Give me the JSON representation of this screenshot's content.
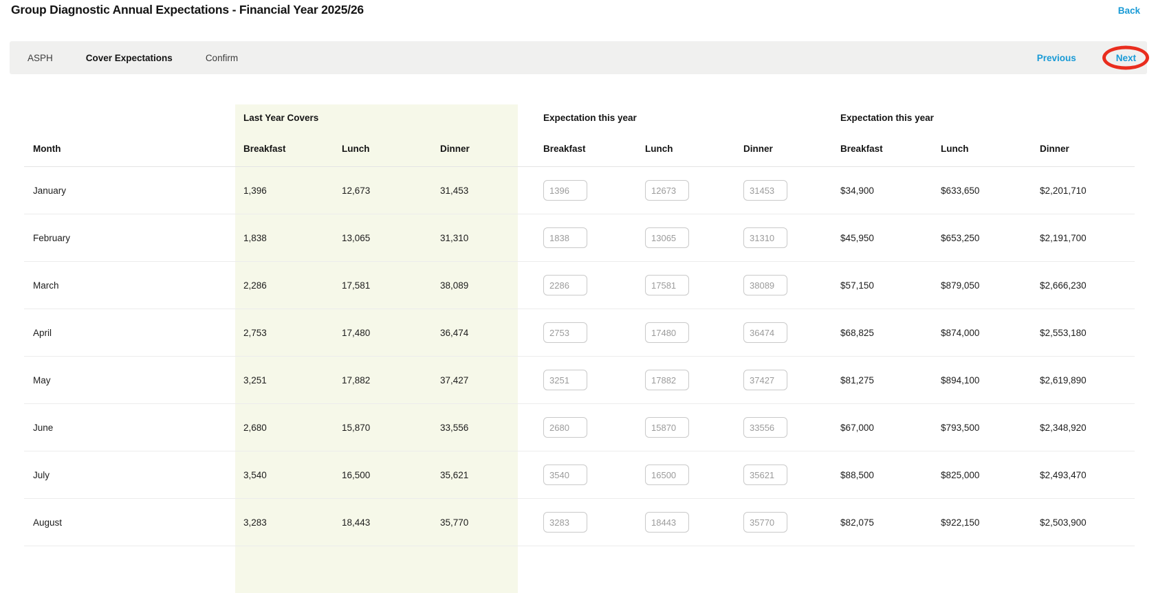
{
  "page": {
    "title": "Group Diagnostic Annual Expectations - Financial Year 2025/26",
    "back_label": "Back"
  },
  "stepper": {
    "steps": [
      {
        "label": "ASPH",
        "active": false
      },
      {
        "label": "Cover Expectations",
        "active": true
      },
      {
        "label": "Confirm",
        "active": false
      }
    ],
    "previous_label": "Previous",
    "next_label": "Next"
  },
  "table": {
    "month_header": "Month",
    "groups": [
      {
        "title": "Last Year Covers",
        "columns": [
          "Breakfast",
          "Lunch",
          "Dinner"
        ]
      },
      {
        "title": "Expectation this year",
        "columns": [
          "Breakfast",
          "Lunch",
          "Dinner"
        ]
      },
      {
        "title": "Expectation this year",
        "columns": [
          "Breakfast",
          "Lunch",
          "Dinner"
        ]
      }
    ],
    "rows": [
      {
        "month": "January",
        "last_year": [
          "1,396",
          "12,673",
          "31,453"
        ],
        "inputs": [
          "1396",
          "12673",
          "31453"
        ],
        "revenue": [
          "$34,900",
          "$633,650",
          "$2,201,710"
        ]
      },
      {
        "month": "February",
        "last_year": [
          "1,838",
          "13,065",
          "31,310"
        ],
        "inputs": [
          "1838",
          "13065",
          "31310"
        ],
        "revenue": [
          "$45,950",
          "$653,250",
          "$2,191,700"
        ]
      },
      {
        "month": "March",
        "last_year": [
          "2,286",
          "17,581",
          "38,089"
        ],
        "inputs": [
          "2286",
          "17581",
          "38089"
        ],
        "revenue": [
          "$57,150",
          "$879,050",
          "$2,666,230"
        ]
      },
      {
        "month": "April",
        "last_year": [
          "2,753",
          "17,480",
          "36,474"
        ],
        "inputs": [
          "2753",
          "17480",
          "36474"
        ],
        "revenue": [
          "$68,825",
          "$874,000",
          "$2,553,180"
        ]
      },
      {
        "month": "May",
        "last_year": [
          "3,251",
          "17,882",
          "37,427"
        ],
        "inputs": [
          "3251",
          "17882",
          "37427"
        ],
        "revenue": [
          "$81,275",
          "$894,100",
          "$2,619,890"
        ]
      },
      {
        "month": "June",
        "last_year": [
          "2,680",
          "15,870",
          "33,556"
        ],
        "inputs": [
          "2680",
          "15870",
          "33556"
        ],
        "revenue": [
          "$67,000",
          "$793,500",
          "$2,348,920"
        ]
      },
      {
        "month": "July",
        "last_year": [
          "3,540",
          "16,500",
          "35,621"
        ],
        "inputs": [
          "3540",
          "16500",
          "35621"
        ],
        "revenue": [
          "$88,500",
          "$825,000",
          "$2,493,470"
        ]
      },
      {
        "month": "August",
        "last_year": [
          "3,283",
          "18,443",
          "35,770"
        ],
        "inputs": [
          "3283",
          "18443",
          "35770"
        ],
        "revenue": [
          "$82,075",
          "$922,150",
          "$2,503,900"
        ]
      }
    ]
  },
  "colors": {
    "accent_blue": "#189ad6",
    "highlight_green": "#f6f8e9",
    "annotation_red": "#e92d1e",
    "stepper_bg": "#f0f0ef"
  }
}
